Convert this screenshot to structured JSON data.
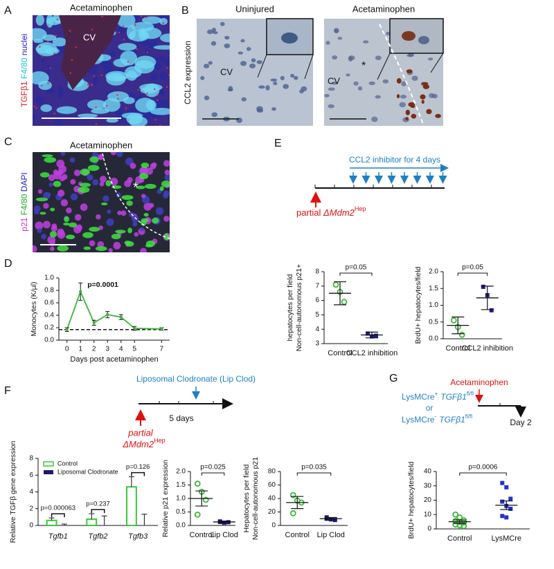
{
  "panels": {
    "A": {
      "letter": "A",
      "title": "Acetaminophen",
      "label": "CV",
      "stain": [
        "TGFβ1",
        "F4/80",
        "nuclei"
      ]
    },
    "B": {
      "letter": "B",
      "ylabel": "CCL2 expression",
      "images": [
        {
          "title": "Uninjured",
          "label": "CV"
        },
        {
          "title": "Acetaminophen",
          "label": "CV",
          "mark": "*"
        }
      ]
    },
    "C": {
      "letter": "C",
      "title": "Acetaminophen",
      "mark": "*",
      "stain": [
        "p21",
        "F4/80",
        "DAPI"
      ]
    },
    "D": {
      "letter": "D"
    },
    "E": {
      "letter": "E",
      "treatment": "CCL2 inhibitor for 4 days",
      "model": "partial",
      "model_gene": "ΔMdm2",
      "model_sup": "Hep"
    },
    "F": {
      "letter": "F",
      "treatment": "Liposomal Clodronate (Lip Clod)",
      "duration": "5 days",
      "model": "partial",
      "model_gene": "ΔMdm2",
      "model_sup": "Hep"
    },
    "G": {
      "letter": "G",
      "treatment": "Acetaminophen",
      "genotypes": [
        {
          "name": "LysMCre",
          "sup": "+",
          "gene": "TGFβ1",
          "gene_sup": "fl/fl"
        },
        {
          "name": "LysMCre",
          "sup": "-",
          "gene": "TGFβ1",
          "gene_sup": "fl/fl"
        }
      ],
      "or": "or",
      "time": "Day 2"
    }
  },
  "chart_data": [
    {
      "type": "line",
      "x": [
        0,
        1,
        2,
        3,
        4,
        5,
        7
      ],
      "values": [
        0.17,
        0.78,
        0.28,
        0.41,
        0.37,
        0.19,
        0.18
      ],
      "errors": [
        0.03,
        0.14,
        0.04,
        0.05,
        0.04,
        0.03,
        0.02
      ],
      "color": "#3cb43c",
      "xlim": [
        -0.6,
        7.6
      ],
      "xticks": [
        0,
        1,
        2,
        3,
        4,
        5,
        7
      ],
      "ylim": [
        0,
        1
      ],
      "yticks": [
        {
          "value": 0,
          "label": "0.0"
        },
        {
          "value": 0.2,
          "label": "0.2"
        },
        {
          "value": 0.4,
          "label": "0.4"
        },
        {
          "value": 0.6,
          "label": "0.6"
        },
        {
          "value": 0.8,
          "label": "0.8"
        },
        {
          "value": 1,
          "label": "1.0"
        }
      ],
      "reference_line": 0.17,
      "xlabel": "Days post acetaminophen",
      "ylabel": "Monocytes (K/µl)",
      "annotation": "p=0.0001"
    },
    {
      "type": "dotplot",
      "categories": [
        "Control",
        "CCL2 inhibition"
      ],
      "points": [
        [
          7.1,
          6.6,
          5.9
        ],
        [
          3.7,
          3.5,
          3.55
        ]
      ],
      "means": [
        6.5,
        3.6
      ],
      "errors": [
        0.8,
        0.2
      ],
      "colors": [
        "#3cb43c",
        "#1c1c8e"
      ],
      "markers": [
        "circle-open",
        "square"
      ],
      "ylim": [
        3,
        8
      ],
      "yticks": [
        3,
        4,
        5,
        6,
        7,
        8
      ],
      "ylabel": [
        "Non-cell-autonomous p21+",
        "hepatocytes per field"
      ],
      "annotation": "p=0.05"
    },
    {
      "type": "dotplot",
      "categories": [
        "Control",
        "CCL2 inhibition"
      ],
      "points": [
        [
          0.55,
          0.35,
          0.12
        ],
        [
          1.55,
          1.3,
          0.85
        ]
      ],
      "means": [
        0.4,
        1.22
      ],
      "errors": [
        0.25,
        0.35
      ],
      "colors": [
        "#3cb43c",
        "#1c1c8e"
      ],
      "markers": [
        "circle-open",
        "square"
      ],
      "ylim": [
        0,
        2
      ],
      "yticks": [
        {
          "value": 0,
          "label": "0.0"
        },
        {
          "value": 0.5,
          "label": "0.5"
        },
        {
          "value": 1,
          "label": "1.0"
        },
        {
          "value": 1.5,
          "label": "1.5"
        },
        {
          "value": 2,
          "label": "2.0"
        }
      ],
      "ylabel": [
        "BrdU+ hepatocytes/field"
      ],
      "annotation": "p=0.05"
    },
    {
      "type": "bar",
      "categories": [
        "Tgfb1",
        "Tgfb2",
        "Tgfb3"
      ],
      "series": [
        {
          "name": "Control",
          "color": "#3cc83c",
          "values": [
            0.6,
            0.75,
            4.6
          ],
          "errors": [
            0.3,
            0.65,
            1.2
          ]
        },
        {
          "name": "Liposomal Clodronate",
          "color": "#1c1c6e",
          "values": [
            0.02,
            0.03,
            0.04
          ],
          "errors": [
            0.15,
            1.1,
            1.3
          ]
        }
      ],
      "ylim": [
        0,
        8
      ],
      "yticks": [
        0,
        2,
        4,
        6,
        8
      ],
      "ylabel": "Relative TGFβ gene expression",
      "annotations": [
        "p=0.000063",
        "p=0.237",
        "p=0.126"
      ],
      "legend": "upper left"
    },
    {
      "type": "dotplot",
      "categories": [
        "Control",
        "Lip Clod"
      ],
      "points": [
        [
          1.55,
          1.25,
          0.95,
          0.4
        ],
        [
          0.15,
          0.1,
          0.12,
          0.13
        ]
      ],
      "means": [
        1.0,
        0.13
      ],
      "errors": [
        0.28,
        0.03
      ],
      "colors": [
        "#3cb43c",
        "#1c1c8e"
      ],
      "markers": [
        "circle-open",
        "square"
      ],
      "ylim": [
        0,
        2
      ],
      "yticks": [
        {
          "value": 0,
          "label": "0.0"
        },
        {
          "value": 0.5,
          "label": "0.5"
        },
        {
          "value": 1,
          "label": "1.0"
        },
        {
          "value": 1.5,
          "label": "1.5"
        },
        {
          "value": 2,
          "label": "2.0"
        }
      ],
      "ylabel": [
        "Relative p21 expression"
      ],
      "annotation": "p=0.025"
    },
    {
      "type": "dotplot",
      "categories": [
        "Control",
        "Lip Clod"
      ],
      "points": [
        [
          45,
          37,
          34,
          18
        ],
        [
          12,
          9,
          8,
          10
        ]
      ],
      "means": [
        34,
        10
      ],
      "errors": [
        9,
        1.8
      ],
      "colors": [
        "#3cb43c",
        "#1c1c8e"
      ],
      "markers": [
        "circle-open",
        "square"
      ],
      "ylim": [
        0,
        80
      ],
      "yticks": [
        0,
        20,
        40,
        60,
        80
      ],
      "ylabel": [
        "Non-cell-autonomous p21",
        "Hepatocytes per field"
      ],
      "annotation": "p=0.035"
    },
    {
      "type": "dotplot",
      "categories": [
        "Control",
        "LysMCre"
      ],
      "points": [
        [
          10,
          8,
          6,
          5.5,
          5,
          4.5,
          3,
          2.5,
          2
        ],
        [
          32,
          29,
          21,
          19,
          16,
          14,
          9,
          8
        ]
      ],
      "means": [
        5,
        16.5
      ],
      "errors": [
        1.2,
        3
      ],
      "colors": [
        "#3cb43c",
        "#2233cc"
      ],
      "markers": [
        "circle-open",
        "square"
      ],
      "ylim": [
        0,
        40
      ],
      "yticks": [
        0,
        10,
        20,
        30,
        40
      ],
      "ylabel": [
        "BrdU+ hepatocytes/field"
      ],
      "annotation": "p=0.0006"
    }
  ]
}
